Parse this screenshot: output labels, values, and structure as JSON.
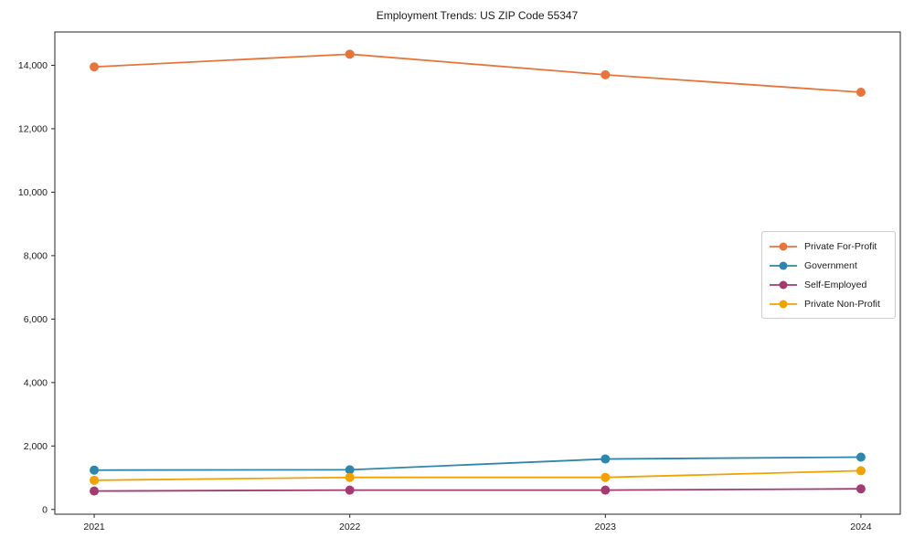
{
  "chart_data": {
    "type": "line",
    "title": "Employment Trends: US ZIP Code 55347",
    "xlabel": "",
    "ylabel": "",
    "x_tick_labels": [
      "2021",
      "2022",
      "2023",
      "2024"
    ],
    "x_values": [
      2021,
      2022,
      2023,
      2024
    ],
    "series": [
      {
        "name": "Private For-Profit",
        "color": "#E8743B",
        "values": [
          13950,
          14350,
          13700,
          13150
        ]
      },
      {
        "name": "Government",
        "color": "#2E86AB",
        "values": [
          1240,
          1250,
          1590,
          1650
        ]
      },
      {
        "name": "Self-Employed",
        "color": "#A23B72",
        "values": [
          580,
          610,
          610,
          650
        ]
      },
      {
        "name": "Private Non-Profit",
        "color": "#F0A202",
        "values": [
          920,
          1010,
          1010,
          1220
        ]
      }
    ],
    "y_ticks": [
      0,
      2000,
      4000,
      6000,
      8000,
      10000,
      12000,
      14000
    ],
    "y_tick_labels": [
      "0",
      "2,000",
      "4,000",
      "6,000",
      "8,000",
      "10,000",
      "12,000",
      "14,000"
    ],
    "ylim": [
      -150,
      15050
    ],
    "xlim": [
      2020.846,
      2024.154
    ],
    "grid": false,
    "legend_position": "center right",
    "marker": "circle",
    "axis_color": "#262626",
    "background_color": "#ffffff"
  }
}
